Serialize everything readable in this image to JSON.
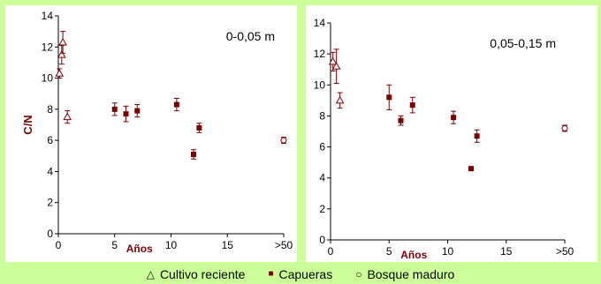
{
  "chart_data": [
    {
      "type": "scatter",
      "title": "0-0,05 m",
      "xlabel": "Años",
      "ylabel": "C/N",
      "xlim": [
        0,
        20
      ],
      "ylim": [
        0,
        14
      ],
      "x_ticks": [
        0,
        5,
        10,
        15,
        20
      ],
      "x_tick_labels": [
        "0",
        "5",
        "10",
        "15",
        ">50"
      ],
      "y_ticks": [
        0,
        2,
        4,
        6,
        8,
        10,
        12,
        14
      ],
      "series": [
        {
          "name": "Cultivo reciente",
          "marker": "triangle",
          "points": [
            {
              "x": 0.1,
              "y": 10.3,
              "err": 0.3
            },
            {
              "x": 0.3,
              "y": 11.5,
              "err": 0.6
            },
            {
              "x": 0.4,
              "y": 12.3,
              "err": 0.7
            },
            {
              "x": 0.8,
              "y": 7.5,
              "err": 0.4
            }
          ]
        },
        {
          "name": "Capueras",
          "marker": "square",
          "points": [
            {
              "x": 5,
              "y": 8.0,
              "err": 0.4
            },
            {
              "x": 6,
              "y": 7.7,
              "err": 0.5
            },
            {
              "x": 7,
              "y": 7.9,
              "err": 0.4
            },
            {
              "x": 10.5,
              "y": 8.3,
              "err": 0.4
            },
            {
              "x": 12,
              "y": 5.1,
              "err": 0.3
            },
            {
              "x": 12.5,
              "y": 6.8,
              "err": 0.3
            }
          ]
        },
        {
          "name": "Bosque maduro",
          "marker": "circle",
          "points": [
            {
              "x": 20,
              "y": 6.0,
              "err": 0.2
            }
          ]
        }
      ]
    },
    {
      "type": "scatter",
      "title": "0,05-0,15 m",
      "xlabel": "Años",
      "ylabel": "",
      "xlim": [
        0,
        20
      ],
      "ylim": [
        0,
        14
      ],
      "x_ticks": [
        0,
        5,
        10,
        15,
        20
      ],
      "x_tick_labels": [
        "0",
        "5",
        "10",
        "15",
        ">50"
      ],
      "y_ticks": [
        0,
        2,
        4,
        6,
        8,
        10,
        12,
        14
      ],
      "series": [
        {
          "name": "Cultivo reciente",
          "marker": "triangle",
          "points": [
            {
              "x": 0.2,
              "y": 11.5,
              "err": 0.6
            },
            {
              "x": 0.5,
              "y": 11.2,
              "err": 1.1
            },
            {
              "x": 0.8,
              "y": 9.0,
              "err": 0.5
            }
          ]
        },
        {
          "name": "Capueras",
          "marker": "square",
          "points": [
            {
              "x": 5,
              "y": 9.2,
              "err": 0.8
            },
            {
              "x": 6,
              "y": 7.7,
              "err": 0.3
            },
            {
              "x": 7,
              "y": 8.7,
              "err": 0.5
            },
            {
              "x": 10.5,
              "y": 7.9,
              "err": 0.4
            },
            {
              "x": 12,
              "y": 4.6,
              "err": 0.1
            },
            {
              "x": 12.5,
              "y": 6.7,
              "err": 0.4
            }
          ]
        },
        {
          "name": "Bosque maduro",
          "marker": "circle",
          "points": [
            {
              "x": 20,
              "y": 7.2,
              "err": 0.2
            }
          ]
        }
      ]
    }
  ],
  "legend": {
    "items": [
      {
        "name": "Cultivo reciente",
        "symbol": "△"
      },
      {
        "name": "Capueras",
        "symbol": "■"
      },
      {
        "name": "Bosque maduro",
        "symbol": "○"
      }
    ]
  },
  "colors": {
    "background": "#ccff99",
    "capueras": "#7a0000",
    "open_marker": "#7a0000",
    "axis": "#000000"
  }
}
